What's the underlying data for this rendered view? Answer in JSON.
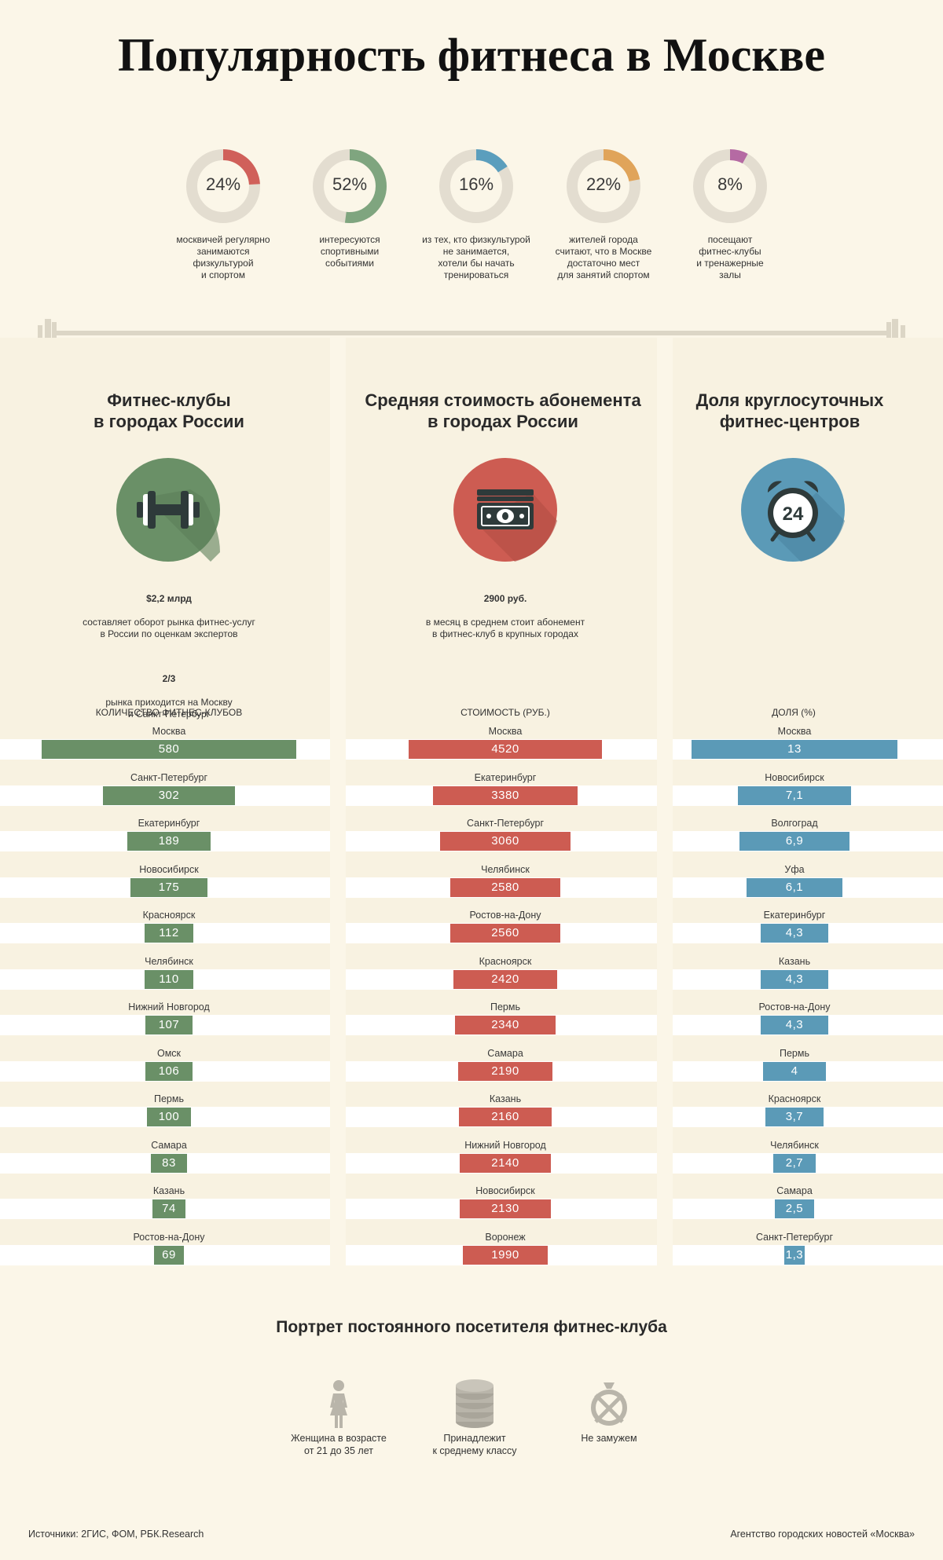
{
  "title": "Популярность фитнеса в Москве",
  "donuts": [
    {
      "pct": "24%",
      "value": 24,
      "color": "#d0605a",
      "caption": "москвичей регулярно\nзанимаются\nфизкультурой\nи спортом"
    },
    {
      "pct": "52%",
      "value": 52,
      "color": "#7fa57f",
      "caption": "интересуются\nспортивными\nсобытиями"
    },
    {
      "pct": "16%",
      "value": 16,
      "color": "#5b9ebd",
      "caption": "из тех, кто физкультурой\nне занимается,\nхотели бы начать\nтренироваться"
    },
    {
      "pct": "22%",
      "value": 22,
      "color": "#e0a45a",
      "caption": "жителей города\nсчитают, что в Москве\nдостаточно мест\nдля занятий спортом"
    },
    {
      "pct": "8%",
      "value": 8,
      "color": "#b56aa3",
      "caption": "посещают\nфитнес-клубы\nи тренажерные\nзалы"
    }
  ],
  "sections": [
    {
      "title": "Фитнес-клубы\nв городах России",
      "icon": "dumbbell-icon",
      "color": "#6a9067",
      "facts": [
        {
          "bold": "$2,2 млрд",
          "text": "составляет оборот рынка фитнес-услуг\nв России по оценкам экспертов"
        },
        {
          "bold": "2/3",
          "text": "рынка приходится на Москву\nи Санкт-Петербург"
        }
      ],
      "column_header": "КОЛИЧЕСТВО ФИТНЕС-КЛУБОВ"
    },
    {
      "title": "Средняя стоимость абонемента\nв городах России",
      "icon": "money-icon",
      "color": "#cd5c52",
      "facts": [
        {
          "bold": "2900 руб.",
          "text": "в месяц в среднем стоит абонемент\nв фитнес-клуб в крупных городах"
        }
      ],
      "column_header": "СТОИМОСТЬ (РУБ.)"
    },
    {
      "title": "Доля круглосуточных\nфитнес-центров",
      "icon": "alarm-clock-24-icon",
      "icon_text": "24",
      "color": "#5b9ab7",
      "facts": [],
      "column_header": "ДОЛЯ (%)"
    }
  ],
  "chart_data": [
    {
      "type": "bar",
      "title": "Фитнес-клубы в городах России",
      "ylabel": "КОЛИЧЕСТВО ФИТНЕС-КЛУБОВ",
      "categories": [
        "Москва",
        "Санкт-Петербург",
        "Екатеринбург",
        "Новосибирск",
        "Красноярск",
        "Челябинск",
        "Нижний Новгород",
        "Омск",
        "Пермь",
        "Самара",
        "Казань",
        "Ростов-на-Дону"
      ],
      "values": [
        580,
        302,
        189,
        175,
        112,
        110,
        107,
        106,
        100,
        83,
        74,
        69
      ],
      "labels": [
        "580",
        "302",
        "189",
        "175",
        "112",
        "110",
        "107",
        "106",
        "100",
        "83",
        "74",
        "69"
      ],
      "color": "#6a9067"
    },
    {
      "type": "bar",
      "title": "Средняя стоимость абонемента в городах России",
      "ylabel": "СТОИМОСТЬ (РУБ.)",
      "categories": [
        "Москва",
        "Екатеринбург",
        "Санкт-Петербург",
        "Челябинск",
        "Ростов-на-Дону",
        "Красноярск",
        "Пермь",
        "Самара",
        "Казань",
        "Нижний Новгород",
        "Новосибирск",
        "Воронеж"
      ],
      "values": [
        4520,
        3380,
        3060,
        2580,
        2560,
        2420,
        2340,
        2190,
        2160,
        2140,
        2130,
        1990
      ],
      "labels": [
        "4520",
        "3380",
        "3060",
        "2580",
        "2560",
        "2420",
        "2340",
        "2190",
        "2160",
        "2140",
        "2130",
        "1990"
      ],
      "color": "#cd5c52"
    },
    {
      "type": "bar",
      "title": "Доля круглосуточных фитнес-центров",
      "ylabel": "ДОЛЯ (%)",
      "categories": [
        "Москва",
        "Новосибирск",
        "Волгоград",
        "Уфа",
        "Екатеринбург",
        "Казань",
        "Ростов-на-Дону",
        "Пермь",
        "Красноярск",
        "Челябинск",
        "Самара",
        "Санкт-Петербург"
      ],
      "values": [
        13,
        7.1,
        6.9,
        6.1,
        4.3,
        4.3,
        4.3,
        4,
        3.7,
        2.7,
        2.5,
        1.3
      ],
      "labels": [
        "13",
        "7,1",
        "6,9",
        "6,1",
        "4,3",
        "4,3",
        "4,3",
        "4",
        "3,7",
        "2,7",
        "2,5",
        "1,3"
      ],
      "color": "#5b9ab7"
    }
  ],
  "portrait": {
    "title": "Портрет постоянного посетителя фитнес-клуба",
    "items": [
      {
        "icon": "woman-icon",
        "caption": "Женщина в возрасте\nот 21 до 35 лет"
      },
      {
        "icon": "coins-stack-icon",
        "caption": "Принадлежит\nк среднему классу"
      },
      {
        "icon": "crossed-ring-icon",
        "caption": "Не замужем"
      }
    ]
  },
  "footer": {
    "sources": "Источники: 2ГИС, ФОМ, РБК.Research",
    "agency": "Агентство городских новостей «Москва»"
  }
}
